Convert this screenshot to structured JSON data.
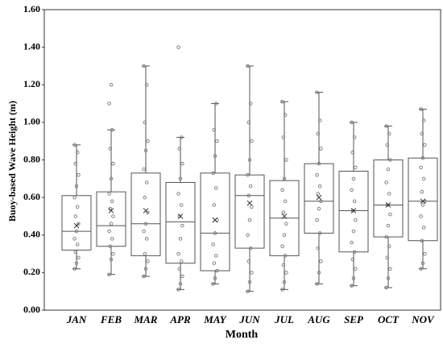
{
  "chart_data": {
    "type": "box",
    "y_label": "Buoy-based Wave Height (m)",
    "x_label": "Month",
    "categories": [
      "JAN",
      "FEB",
      "MAR",
      "APR",
      "MAY",
      "JUN",
      "JUL",
      "AUG",
      "SEP",
      "OCT",
      "NOV"
    ],
    "whisker_low": [
      0.22,
      0.19,
      0.18,
      0.11,
      0.14,
      0.1,
      0.11,
      0.14,
      0.13,
      0.12,
      0.22
    ],
    "q1": [
      0.32,
      0.34,
      0.29,
      0.25,
      0.21,
      0.33,
      0.29,
      0.41,
      0.31,
      0.39,
      0.37
    ],
    "median": [
      0.42,
      0.45,
      0.46,
      0.47,
      0.41,
      0.61,
      0.49,
      0.58,
      0.53,
      0.56,
      0.58
    ],
    "q3": [
      0.61,
      0.63,
      0.73,
      0.68,
      0.73,
      0.72,
      0.69,
      0.78,
      0.74,
      0.8,
      0.81
    ],
    "whisker_high": [
      0.88,
      0.96,
      1.3,
      0.92,
      1.1,
      1.3,
      1.11,
      1.16,
      1.0,
      0.98,
      1.07
    ],
    "mean": [
      0.45,
      0.53,
      0.53,
      0.5,
      0.48,
      0.57,
      0.5,
      0.6,
      0.53,
      0.56,
      0.58
    ],
    "points": [
      [
        0.22,
        0.25,
        0.28,
        0.31,
        0.35,
        0.38,
        0.42,
        0.46,
        0.5,
        0.55,
        0.6,
        0.66,
        0.72,
        0.78,
        0.84,
        0.88
      ],
      [
        0.19,
        0.27,
        0.3,
        0.34,
        0.38,
        0.42,
        0.46,
        0.5,
        0.54,
        0.58,
        0.62,
        0.7,
        0.78,
        0.86,
        0.96,
        1.1,
        1.2
      ],
      [
        0.18,
        0.22,
        0.26,
        0.3,
        0.38,
        0.42,
        0.46,
        0.52,
        0.6,
        0.68,
        0.75,
        0.85,
        0.9,
        1.0,
        1.2,
        1.3
      ],
      [
        0.11,
        0.14,
        0.18,
        0.22,
        0.26,
        0.3,
        0.38,
        0.45,
        0.5,
        0.56,
        0.62,
        0.7,
        0.78,
        0.86,
        0.92,
        1.4
      ],
      [
        0.14,
        0.17,
        0.21,
        0.25,
        0.29,
        0.35,
        0.41,
        0.48,
        0.56,
        0.65,
        0.73,
        0.82,
        0.9,
        0.96,
        1.1
      ],
      [
        0.1,
        0.15,
        0.2,
        0.26,
        0.33,
        0.4,
        0.48,
        0.55,
        0.61,
        0.66,
        0.72,
        0.8,
        0.9,
        1.0,
        1.1,
        1.3
      ],
      [
        0.11,
        0.15,
        0.2,
        0.24,
        0.29,
        0.34,
        0.4,
        0.46,
        0.52,
        0.58,
        0.64,
        0.7,
        0.8,
        0.92,
        1.04,
        1.11
      ],
      [
        0.14,
        0.2,
        0.26,
        0.33,
        0.41,
        0.48,
        0.54,
        0.58,
        0.62,
        0.66,
        0.72,
        0.78,
        0.86,
        0.94,
        1.01,
        1.16
      ],
      [
        0.13,
        0.17,
        0.22,
        0.27,
        0.31,
        0.36,
        0.42,
        0.48,
        0.53,
        0.58,
        0.64,
        0.7,
        0.76,
        0.84,
        0.92,
        1.0
      ],
      [
        0.12,
        0.17,
        0.22,
        0.28,
        0.34,
        0.39,
        0.45,
        0.51,
        0.56,
        0.62,
        0.68,
        0.75,
        0.8,
        0.88,
        0.94,
        0.98
      ],
      [
        0.22,
        0.25,
        0.3,
        0.37,
        0.44,
        0.5,
        0.56,
        0.58,
        0.63,
        0.7,
        0.76,
        0.81,
        0.88,
        0.94,
        1.01,
        1.07
      ]
    ],
    "box_color": "#555555",
    "point_color": "#777777",
    "ylim": [
      0,
      1.6
    ],
    "yticks": [
      {
        "value": 0,
        "label": "0.00"
      },
      {
        "value": 0.2,
        "label": "0.20"
      },
      {
        "value": 0.4,
        "label": "0.40"
      },
      {
        "value": 0.6,
        "label": "0.60"
      },
      {
        "value": 0.8,
        "label": "0.80"
      },
      {
        "value": 1.0,
        "label": "1.00"
      },
      {
        "value": 1.2,
        "label": "1.20"
      },
      {
        "value": 1.4,
        "label": "1.40"
      },
      {
        "value": 1.6,
        "label": "1.60"
      }
    ]
  }
}
